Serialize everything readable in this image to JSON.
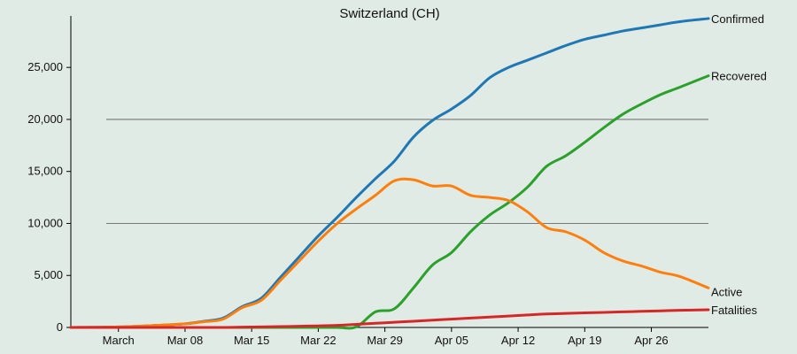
{
  "chart_data": {
    "type": "line",
    "title": "Switzerland (CH)",
    "xlabel": "",
    "ylabel": "",
    "grid": "horizontal gridlines at 10,000 and 20,000",
    "legend": "direct labels at right end of each line",
    "x_range": [
      "2020-02-25",
      "2020-05-02"
    ],
    "ylim": [
      0,
      30000
    ],
    "x_ticks": [
      {
        "date": "2020-03-01",
        "label": "March"
      },
      {
        "date": "2020-03-08",
        "label": "Mar 08"
      },
      {
        "date": "2020-03-15",
        "label": "Mar 15"
      },
      {
        "date": "2020-03-22",
        "label": "Mar 22"
      },
      {
        "date": "2020-03-29",
        "label": "Mar 29"
      },
      {
        "date": "2020-04-05",
        "label": "Apr 05"
      },
      {
        "date": "2020-04-12",
        "label": "Apr 12"
      },
      {
        "date": "2020-04-19",
        "label": "Apr 19"
      },
      {
        "date": "2020-04-26",
        "label": "Apr 26"
      }
    ],
    "y_ticks": [
      {
        "value": 0,
        "label": "0"
      },
      {
        "value": 5000,
        "label": "5,000"
      },
      {
        "value": 10000,
        "label": "10,000"
      },
      {
        "value": 15000,
        "label": "15,000"
      },
      {
        "value": 20000,
        "label": "20,000"
      },
      {
        "value": 25000,
        "label": "25,000"
      }
    ],
    "gridlines": [
      10000,
      20000
    ],
    "x": [
      "2020-02-25",
      "2020-03-01",
      "2020-03-05",
      "2020-03-08",
      "2020-03-10",
      "2020-03-12",
      "2020-03-14",
      "2020-03-16",
      "2020-03-18",
      "2020-03-20",
      "2020-03-22",
      "2020-03-24",
      "2020-03-26",
      "2020-03-28",
      "2020-03-30",
      "2020-04-01",
      "2020-04-03",
      "2020-04-05",
      "2020-04-07",
      "2020-04-09",
      "2020-04-11",
      "2020-04-13",
      "2020-04-15",
      "2020-04-17",
      "2020-04-19",
      "2020-04-21",
      "2020-04-23",
      "2020-04-25",
      "2020-04-27",
      "2020-04-29",
      "2020-05-02"
    ],
    "series": [
      {
        "name": "Confirmed",
        "color": "#1f77b4",
        "values": [
          0,
          50,
          200,
          350,
          600,
          900,
          2000,
          2800,
          4800,
          6800,
          8800,
          10600,
          12500,
          14300,
          16000,
          18300,
          19900,
          21000,
          22300,
          24000,
          25000,
          25700,
          26400,
          27100,
          27700,
          28100,
          28500,
          28800,
          29100,
          29400,
          29700
        ]
      },
      {
        "name": "Recovered",
        "color": "#2ca02c",
        "values": [
          0,
          0,
          0,
          0,
          0,
          0,
          0,
          0,
          0,
          0,
          0,
          0,
          50,
          1500,
          1800,
          3800,
          6000,
          7200,
          9200,
          10800,
          12000,
          13500,
          15500,
          16500,
          17800,
          19200,
          20500,
          21500,
          22400,
          23100,
          24200
        ]
      },
      {
        "name": "Active",
        "color": "#ff7f0e",
        "values": [
          0,
          50,
          200,
          350,
          550,
          800,
          1900,
          2600,
          4500,
          6400,
          8300,
          10000,
          11400,
          12700,
          14100,
          14200,
          13600,
          13600,
          12700,
          12500,
          12200,
          11100,
          9600,
          9200,
          8400,
          7200,
          6400,
          5900,
          5300,
          4900,
          3800
        ]
      },
      {
        "name": "Fatalities",
        "color": "#d62728",
        "values": [
          0,
          0,
          0,
          0,
          0,
          0,
          30,
          50,
          80,
          120,
          150,
          200,
          300,
          400,
          500,
          600,
          700,
          800,
          900,
          1000,
          1100,
          1200,
          1300,
          1350,
          1400,
          1450,
          1500,
          1550,
          1600,
          1650,
          1700
        ]
      }
    ]
  }
}
